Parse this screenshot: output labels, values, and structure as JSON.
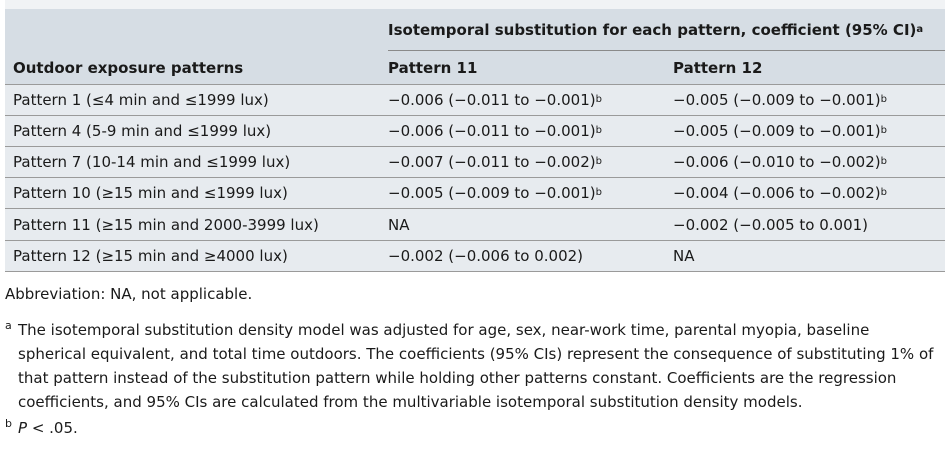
{
  "header": {
    "group_label": "Isotemporal substitution for each pattern, coefficient (95% CI)",
    "group_label_sup": "a",
    "col1": "Outdoor exposure patterns",
    "col2": "Pattern 11",
    "col3": "Pattern 12"
  },
  "rows": [
    {
      "pattern": "Pattern 1 (≤4 min and ≤1999 lux)",
      "p11": "−0.006 (−0.011 to −0.001)",
      "p11_sup": "b",
      "p12": "−0.005 (−0.009 to −0.001)",
      "p12_sup": "b"
    },
    {
      "pattern": "Pattern 4 (5-9 min and ≤1999 lux)",
      "p11": "−0.006 (−0.011 to −0.001)",
      "p11_sup": "b",
      "p12": "−0.005 (−0.009 to −0.001)",
      "p12_sup": "b"
    },
    {
      "pattern": "Pattern 7 (10-14 min and ≤1999 lux)",
      "p11": "−0.007 (−0.011 to −0.002)",
      "p11_sup": "b",
      "p12": "−0.006 (−0.010 to −0.002)",
      "p12_sup": "b"
    },
    {
      "pattern": "Pattern 10 (≥15 min and ≤1999 lux)",
      "p11": "−0.005 (−0.009 to −0.001)",
      "p11_sup": "b",
      "p12": "−0.004 (−0.006 to −0.002)",
      "p12_sup": "b"
    },
    {
      "pattern": "Pattern 11 (≥15 min and 2000-3999 lux)",
      "p11": "NA",
      "p11_sup": "",
      "p12": "−0.002 (−0.005 to 0.001)",
      "p12_sup": ""
    },
    {
      "pattern": "Pattern 12 (≥15 min and ≥4000 lux)",
      "p11": "−0.002 (−0.006 to 0.002)",
      "p11_sup": "",
      "p12": "NA",
      "p12_sup": ""
    }
  ],
  "notes": {
    "abbreviation": "Abbreviation: NA, not applicable.",
    "footnote_a_mark": "a",
    "footnote_a": "The isotemporal substitution density model was adjusted for age, sex, near-work time, parental myopia, baseline spherical equivalent, and total time outdoors. The coefficients (95% CIs) represent the consequence of substituting 1% of that pattern instead of the substitution pattern while holding other patterns constant. Coefficients are the regression coefficients, and 95% CIs are calculated from the multivariable isotemporal substitution density models.",
    "footnote_b_mark": "b",
    "footnote_b_p": "P",
    "footnote_b_rest": " < .05."
  }
}
